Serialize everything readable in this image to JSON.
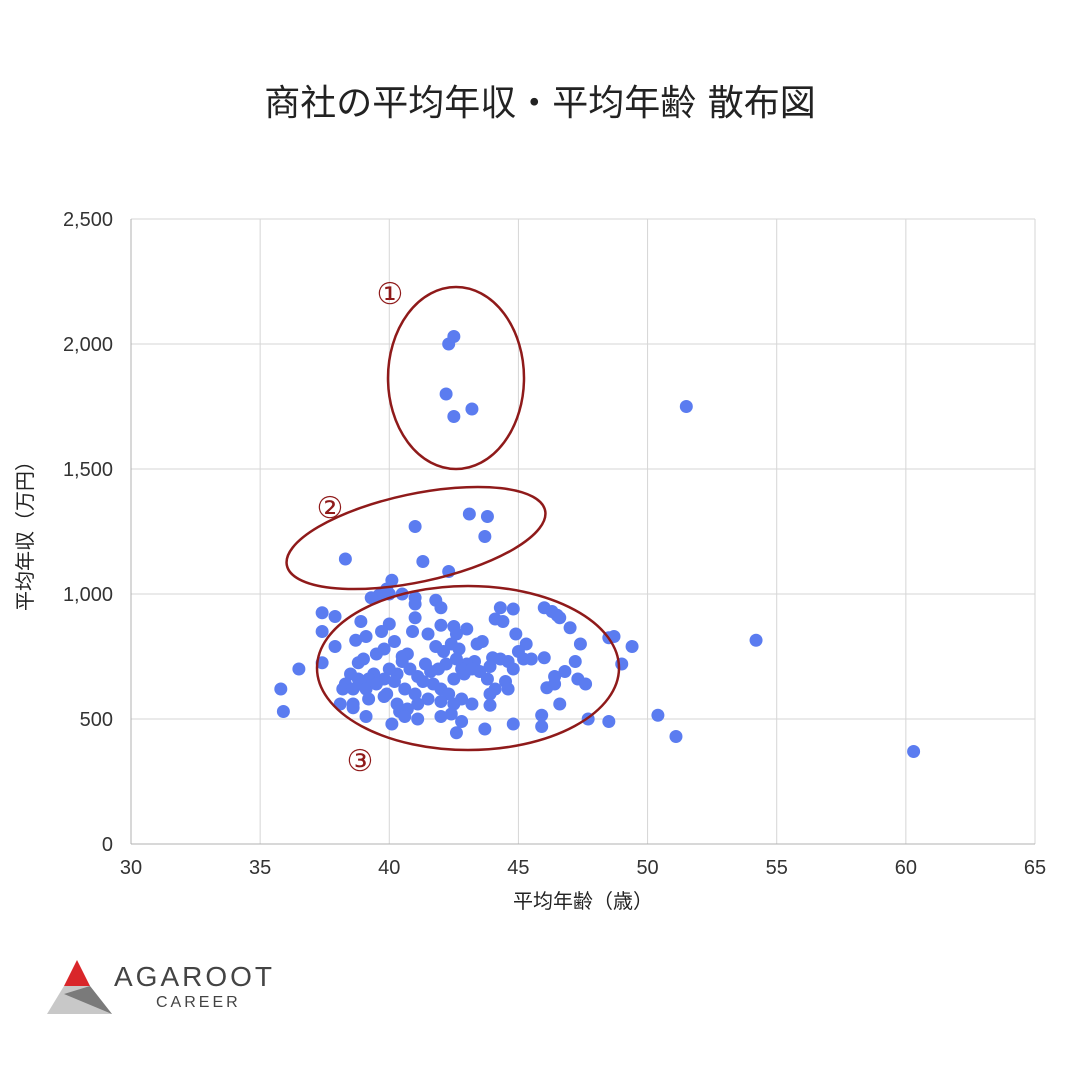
{
  "chart_data": {
    "type": "scatter",
    "title": "商社の平均年収・平均年齢 散布図",
    "xlabel": "平均年齢（歳）",
    "ylabel": "平均年収（万円）",
    "xlim": [
      30,
      65
    ],
    "ylim": [
      0,
      2500
    ],
    "x_ticks": [
      "30",
      "35",
      "40",
      "45",
      "50",
      "55",
      "60",
      "65"
    ],
    "y_ticks": [
      "0",
      "500",
      "1,000",
      "1,500",
      "2,000",
      "2,500"
    ],
    "grid": true,
    "point_color": "#5b7cf0",
    "points": [
      [
        42.3,
        2000
      ],
      [
        42.5,
        2030
      ],
      [
        42.2,
        1800
      ],
      [
        43.2,
        1740
      ],
      [
        42.5,
        1710
      ],
      [
        51.5,
        1750
      ],
      [
        43.1,
        1320
      ],
      [
        43.8,
        1310
      ],
      [
        41.0,
        1270
      ],
      [
        43.7,
        1230
      ],
      [
        38.3,
        1140
      ],
      [
        41.3,
        1130
      ],
      [
        42.3,
        1090
      ],
      [
        40.1,
        1055
      ],
      [
        39.9,
        1020
      ],
      [
        40.5,
        1000
      ],
      [
        39.6,
        995
      ],
      [
        40.0,
        1000
      ],
      [
        39.3,
        985
      ],
      [
        41.0,
        985
      ],
      [
        41.8,
        975
      ],
      [
        41.0,
        960
      ],
      [
        37.4,
        925
      ],
      [
        37.9,
        910
      ],
      [
        38.9,
        890
      ],
      [
        41.0,
        905
      ],
      [
        42.0,
        945
      ],
      [
        44.3,
        945
      ],
      [
        44.8,
        940
      ],
      [
        46.0,
        945
      ],
      [
        46.3,
        930
      ],
      [
        46.5,
        915
      ],
      [
        46.6,
        905
      ],
      [
        47.0,
        865
      ],
      [
        37.4,
        850
      ],
      [
        40.0,
        880
      ],
      [
        40.9,
        850
      ],
      [
        41.5,
        840
      ],
      [
        42.0,
        875
      ],
      [
        42.5,
        870
      ],
      [
        42.6,
        840
      ],
      [
        43.0,
        860
      ],
      [
        44.1,
        900
      ],
      [
        44.4,
        890
      ],
      [
        44.9,
        840
      ],
      [
        45.3,
        800
      ],
      [
        46.0,
        745
      ],
      [
        47.4,
        800
      ],
      [
        48.5,
        825
      ],
      [
        48.7,
        830
      ],
      [
        49.4,
        790
      ],
      [
        54.2,
        815
      ],
      [
        49.0,
        720
      ],
      [
        47.2,
        730
      ],
      [
        37.9,
        790
      ],
      [
        38.7,
        815
      ],
      [
        39.1,
        830
      ],
      [
        39.7,
        850
      ],
      [
        40.2,
        810
      ],
      [
        39.5,
        760
      ],
      [
        39.8,
        780
      ],
      [
        40.5,
        750
      ],
      [
        40.7,
        760
      ],
      [
        41.4,
        720
      ],
      [
        41.8,
        790
      ],
      [
        42.1,
        770
      ],
      [
        42.4,
        800
      ],
      [
        42.7,
        780
      ],
      [
        43.4,
        800
      ],
      [
        43.6,
        810
      ],
      [
        44.0,
        745
      ],
      [
        44.3,
        740
      ],
      [
        44.6,
        730
      ],
      [
        45.0,
        770
      ],
      [
        45.2,
        740
      ],
      [
        45.5,
        740
      ],
      [
        44.8,
        700
      ],
      [
        43.9,
        710
      ],
      [
        43.3,
        730
      ],
      [
        43.0,
        720
      ],
      [
        42.8,
        700
      ],
      [
        42.6,
        740
      ],
      [
        42.2,
        720
      ],
      [
        41.9,
        700
      ],
      [
        41.6,
        690
      ],
      [
        41.1,
        670
      ],
      [
        40.8,
        700
      ],
      [
        40.5,
        730
      ],
      [
        40.3,
        680
      ],
      [
        40.0,
        700
      ],
      [
        39.8,
        660
      ],
      [
        39.4,
        680
      ],
      [
        39.2,
        660
      ],
      [
        38.8,
        660
      ],
      [
        38.5,
        680
      ],
      [
        38.3,
        640
      ],
      [
        38.2,
        620
      ],
      [
        38.6,
        620
      ],
      [
        38.9,
        640
      ],
      [
        39.1,
        620
      ],
      [
        39.5,
        640
      ],
      [
        39.9,
        600
      ],
      [
        40.2,
        650
      ],
      [
        40.6,
        620
      ],
      [
        41.0,
        600
      ],
      [
        41.3,
        650
      ],
      [
        41.7,
        640
      ],
      [
        42.0,
        620
      ],
      [
        42.3,
        600
      ],
      [
        42.5,
        660
      ],
      [
        42.9,
        680
      ],
      [
        43.2,
        700
      ],
      [
        43.5,
        690
      ],
      [
        43.8,
        660
      ],
      [
        44.1,
        620
      ],
      [
        44.5,
        650
      ],
      [
        44.6,
        620
      ],
      [
        43.9,
        600
      ],
      [
        43.2,
        560
      ],
      [
        42.8,
        580
      ],
      [
        42.5,
        560
      ],
      [
        42.0,
        570
      ],
      [
        41.5,
        580
      ],
      [
        41.1,
        560
      ],
      [
        40.7,
        540
      ],
      [
        40.3,
        560
      ],
      [
        39.8,
        590
      ],
      [
        39.2,
        580
      ],
      [
        38.6,
        560
      ],
      [
        38.1,
        560
      ],
      [
        38.6,
        545
      ],
      [
        39.1,
        510
      ],
      [
        40.4,
        530
      ],
      [
        40.6,
        510
      ],
      [
        41.1,
        500
      ],
      [
        42.0,
        510
      ],
      [
        42.4,
        520
      ],
      [
        42.8,
        490
      ],
      [
        42.6,
        445
      ],
      [
        43.7,
        460
      ],
      [
        43.9,
        555
      ],
      [
        40.1,
        480
      ],
      [
        44.8,
        480
      ],
      [
        45.9,
        470
      ],
      [
        45.9,
        515
      ],
      [
        46.1,
        625
      ],
      [
        46.4,
        640
      ],
      [
        46.6,
        560
      ],
      [
        46.8,
        690
      ],
      [
        46.4,
        670
      ],
      [
        47.3,
        660
      ],
      [
        47.6,
        640
      ],
      [
        47.7,
        500
      ],
      [
        48.5,
        490
      ],
      [
        50.4,
        515
      ],
      [
        51.1,
        430
      ],
      [
        60.3,
        370
      ],
      [
        35.8,
        620
      ],
      [
        35.9,
        530
      ],
      [
        36.5,
        700
      ],
      [
        37.4,
        725
      ],
      [
        38.8,
        725
      ],
      [
        39.0,
        740
      ]
    ],
    "annotations": [
      "①",
      "②",
      "③"
    ]
  },
  "brand": {
    "name": "AGAROOT",
    "sub": "CAREER",
    "colors": {
      "red": "#d9262a",
      "dark_gray": "#7a7a7a",
      "light_gray": "#c8c8c8"
    }
  }
}
